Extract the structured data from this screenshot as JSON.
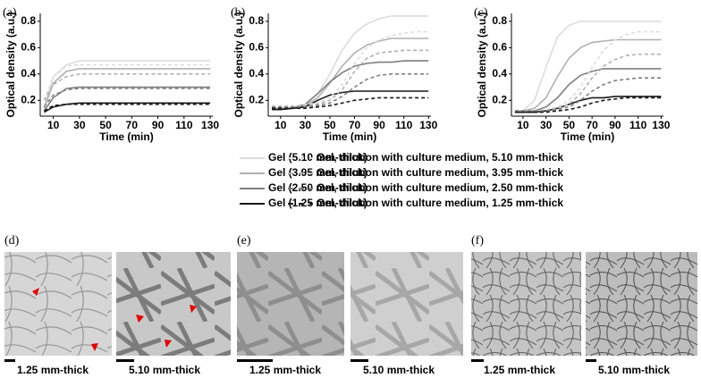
{
  "chart_data": [
    {
      "type": "line",
      "label": "(a)",
      "xlabel": "Time (min)",
      "ylabel": "Optical density (a.u.)",
      "xlim": [
        0,
        132
      ],
      "xticks": [
        10,
        30,
        50,
        70,
        90,
        110,
        130
      ],
      "ylim": [
        0.08,
        0.86
      ],
      "yticks": [
        0.2,
        0.4,
        0.6,
        0.8
      ],
      "x": [
        3,
        10,
        20,
        30,
        40,
        50,
        60,
        70,
        80,
        90,
        100,
        110,
        120,
        130
      ],
      "series": [
        {
          "name": "Gel (5.10 mm-thick)",
          "color": "#dcdcdc",
          "dash": false,
          "values": [
            0.15,
            0.38,
            0.47,
            0.5,
            0.5,
            0.5,
            0.5,
            0.5,
            0.5,
            0.5,
            0.5,
            0.5,
            0.5,
            0.5
          ]
        },
        {
          "name": "Gel (3.95 mm-thick)",
          "color": "#b0b0b0",
          "dash": false,
          "values": [
            0.14,
            0.33,
            0.42,
            0.44,
            0.44,
            0.44,
            0.44,
            0.44,
            0.44,
            0.44,
            0.44,
            0.44,
            0.44,
            0.44
          ]
        },
        {
          "name": "Gel (2.50 mm-thick)",
          "color": "#7f7f7f",
          "dash": false,
          "values": [
            0.12,
            0.22,
            0.29,
            0.3,
            0.3,
            0.3,
            0.3,
            0.3,
            0.3,
            0.3,
            0.3,
            0.3,
            0.3,
            0.3
          ]
        },
        {
          "name": "Gel (1.25 mm-thick)",
          "color": "#1a1a1a",
          "dash": false,
          "values": [
            0.11,
            0.15,
            0.17,
            0.18,
            0.18,
            0.18,
            0.18,
            0.18,
            0.18,
            0.18,
            0.18,
            0.18,
            0.18,
            0.18
          ]
        },
        {
          "name": "Gel, dilution with culture medium, 5.10 mm-thick",
          "color": "#dcdcdc",
          "dash": true,
          "values": [
            0.2,
            0.38,
            0.46,
            0.47,
            0.47,
            0.47,
            0.47,
            0.47,
            0.47,
            0.47,
            0.47,
            0.47,
            0.47,
            0.47
          ]
        },
        {
          "name": "Gel, dilution with culture medium, 3.95 mm-thick",
          "color": "#b0b0b0",
          "dash": true,
          "values": [
            0.2,
            0.32,
            0.38,
            0.4,
            0.4,
            0.4,
            0.4,
            0.4,
            0.4,
            0.4,
            0.4,
            0.4,
            0.4,
            0.4
          ]
        },
        {
          "name": "Gel, dilution with culture medium, 2.50 mm-thick",
          "color": "#7f7f7f",
          "dash": true,
          "values": [
            0.15,
            0.24,
            0.28,
            0.29,
            0.29,
            0.29,
            0.29,
            0.29,
            0.29,
            0.29,
            0.29,
            0.29,
            0.29,
            0.29
          ]
        },
        {
          "name": "Gel, dilution with culture medium, 1.25 mm-thick",
          "color": "#1a1a1a",
          "dash": true,
          "values": [
            0.12,
            0.16,
            0.17,
            0.17,
            0.17,
            0.17,
            0.17,
            0.17,
            0.17,
            0.17,
            0.17,
            0.17,
            0.17,
            0.17
          ]
        }
      ]
    },
    {
      "type": "line",
      "label": "(b)",
      "xlabel": "Time (min)",
      "ylabel": "Optical density (a.u.)",
      "xlim": [
        0,
        132
      ],
      "xticks": [
        10,
        30,
        50,
        70,
        90,
        110,
        130
      ],
      "ylim": [
        0.08,
        0.86
      ],
      "yticks": [
        0.2,
        0.4,
        0.6,
        0.8
      ],
      "x": [
        3,
        10,
        20,
        30,
        40,
        50,
        60,
        70,
        80,
        90,
        100,
        110,
        120,
        130
      ],
      "series": [
        {
          "color": "#dcdcdc",
          "dash": false,
          "values": [
            0.14,
            0.14,
            0.15,
            0.17,
            0.25,
            0.4,
            0.58,
            0.71,
            0.78,
            0.82,
            0.84,
            0.84,
            0.84,
            0.84
          ]
        },
        {
          "color": "#b0b0b0",
          "dash": false,
          "values": [
            0.14,
            0.14,
            0.14,
            0.16,
            0.22,
            0.33,
            0.46,
            0.56,
            0.62,
            0.65,
            0.67,
            0.67,
            0.67,
            0.67
          ]
        },
        {
          "color": "#7f7f7f",
          "dash": false,
          "values": [
            0.13,
            0.13,
            0.14,
            0.17,
            0.25,
            0.34,
            0.41,
            0.46,
            0.48,
            0.49,
            0.49,
            0.5,
            0.5,
            0.5
          ]
        },
        {
          "color": "#1a1a1a",
          "dash": false,
          "values": [
            0.13,
            0.13,
            0.14,
            0.15,
            0.2,
            0.24,
            0.26,
            0.27,
            0.27,
            0.27,
            0.27,
            0.27,
            0.27,
            0.27
          ]
        },
        {
          "color": "#dcdcdc",
          "dash": true,
          "values": [
            0.16,
            0.16,
            0.16,
            0.17,
            0.18,
            0.22,
            0.32,
            0.48,
            0.6,
            0.66,
            0.69,
            0.71,
            0.72,
            0.72
          ]
        },
        {
          "color": "#b0b0b0",
          "dash": true,
          "values": [
            0.15,
            0.15,
            0.15,
            0.16,
            0.17,
            0.2,
            0.28,
            0.42,
            0.52,
            0.56,
            0.57,
            0.58,
            0.58,
            0.58
          ]
        },
        {
          "color": "#7f7f7f",
          "dash": true,
          "values": [
            0.15,
            0.15,
            0.15,
            0.15,
            0.16,
            0.18,
            0.23,
            0.3,
            0.36,
            0.39,
            0.4,
            0.4,
            0.4,
            0.4
          ]
        },
        {
          "color": "#1a1a1a",
          "dash": true,
          "values": [
            0.14,
            0.14,
            0.14,
            0.14,
            0.15,
            0.16,
            0.18,
            0.2,
            0.21,
            0.22,
            0.22,
            0.22,
            0.22,
            0.22
          ]
        }
      ]
    },
    {
      "type": "line",
      "label": "(c)",
      "xlabel": "Time (min)",
      "ylabel": "Optical density (a.u.)",
      "xlim": [
        0,
        132
      ],
      "xticks": [
        10,
        30,
        50,
        70,
        90,
        110,
        130
      ],
      "ylim": [
        0.08,
        0.86
      ],
      "yticks": [
        0.2,
        0.4,
        0.6,
        0.8
      ],
      "x": [
        3,
        10,
        20,
        30,
        40,
        50,
        60,
        70,
        80,
        90,
        100,
        110,
        120,
        130
      ],
      "series": [
        {
          "color": "#dcdcdc",
          "dash": false,
          "values": [
            0.12,
            0.12,
            0.2,
            0.45,
            0.68,
            0.77,
            0.8,
            0.8,
            0.8,
            0.8,
            0.8,
            0.8,
            0.8,
            0.8
          ]
        },
        {
          "color": "#b0b0b0",
          "dash": false,
          "values": [
            0.12,
            0.12,
            0.14,
            0.22,
            0.38,
            0.52,
            0.6,
            0.64,
            0.65,
            0.66,
            0.66,
            0.66,
            0.66,
            0.66
          ]
        },
        {
          "color": "#7f7f7f",
          "dash": false,
          "values": [
            0.11,
            0.11,
            0.12,
            0.15,
            0.22,
            0.32,
            0.39,
            0.42,
            0.44,
            0.44,
            0.44,
            0.44,
            0.44,
            0.44
          ]
        },
        {
          "color": "#1a1a1a",
          "dash": false,
          "values": [
            0.11,
            0.11,
            0.11,
            0.12,
            0.14,
            0.17,
            0.2,
            0.22,
            0.22,
            0.23,
            0.23,
            0.23,
            0.23,
            0.23
          ]
        },
        {
          "color": "#dcdcdc",
          "dash": true,
          "values": [
            0.12,
            0.12,
            0.12,
            0.13,
            0.15,
            0.2,
            0.3,
            0.45,
            0.58,
            0.66,
            0.7,
            0.72,
            0.72,
            0.72
          ]
        },
        {
          "color": "#b0b0b0",
          "dash": true,
          "values": [
            0.12,
            0.12,
            0.12,
            0.12,
            0.14,
            0.17,
            0.25,
            0.37,
            0.46,
            0.51,
            0.54,
            0.55,
            0.55,
            0.55
          ]
        },
        {
          "color": "#7f7f7f",
          "dash": true,
          "values": [
            0.12,
            0.12,
            0.12,
            0.12,
            0.13,
            0.15,
            0.2,
            0.27,
            0.32,
            0.35,
            0.36,
            0.37,
            0.37,
            0.37
          ]
        },
        {
          "color": "#1a1a1a",
          "dash": true,
          "values": [
            0.11,
            0.11,
            0.11,
            0.11,
            0.12,
            0.13,
            0.15,
            0.18,
            0.2,
            0.21,
            0.22,
            0.22,
            0.22,
            0.22
          ]
        }
      ]
    }
  ],
  "panels": [
    {
      "label": "(d)",
      "captions": [
        "1.25 mm-thick",
        "5.10 mm-thick"
      ]
    },
    {
      "label": "(e)",
      "captions": [
        "1.25 mm-thick",
        "5.10 mm-thick"
      ]
    },
    {
      "label": "(f)",
      "captions": [
        "1.25 mm-thick",
        "5.10 mm-thick"
      ]
    }
  ]
}
